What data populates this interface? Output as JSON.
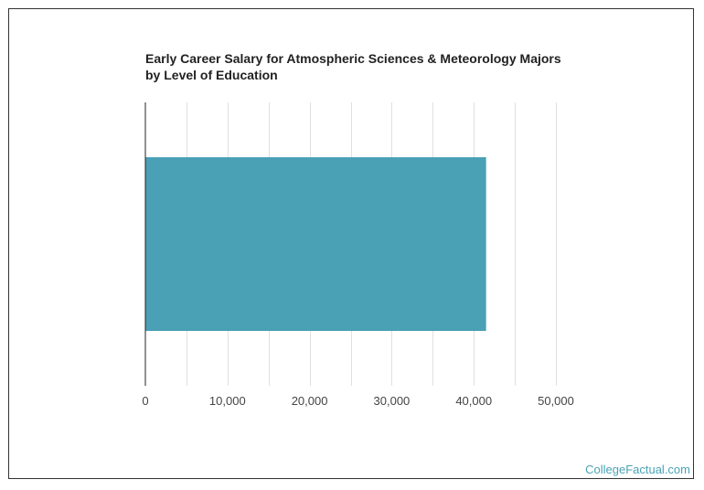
{
  "chart_data": {
    "type": "bar",
    "orientation": "horizontal",
    "title": "Early Career Salary for Atmospheric Sciences & Meteorology Majors by Level of Education",
    "categories": [
      ""
    ],
    "values": [
      41500
    ],
    "xlim": [
      0,
      50000
    ],
    "xticks": [
      0,
      10000,
      20000,
      30000,
      40000,
      50000
    ],
    "xtick_labels": [
      "0",
      "10,000",
      "20,000",
      "30,000",
      "40,000",
      "50,000"
    ],
    "grid": true,
    "bar_color": "#4aa0b5",
    "grid_color": "#e0e0e0"
  },
  "watermark": "CollegeFactual.com"
}
